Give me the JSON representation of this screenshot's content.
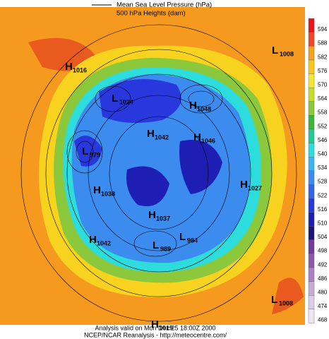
{
  "header": {
    "lines": [
      "Mean Sea Level Pressure (hPa)",
      "500 hPa Heights (dam)"
    ]
  },
  "colorbar": {
    "labels": [
      594,
      588,
      582,
      576,
      570,
      564,
      558,
      552,
      546,
      540,
      534,
      528,
      522,
      516,
      510,
      504,
      498,
      492,
      486,
      480,
      474,
      468
    ]
  },
  "centers": [
    {
      "kind": "H",
      "value": 1016
    },
    {
      "kind": "L",
      "value": 1024
    },
    {
      "kind": "H",
      "value": 1048
    },
    {
      "kind": "H",
      "value": 1042
    },
    {
      "kind": "H",
      "value": 1046
    },
    {
      "kind": "L",
      "value": 1008
    },
    {
      "kind": "L",
      "value": 979
    },
    {
      "kind": "H",
      "value": 1038
    },
    {
      "kind": "H",
      "value": 1037
    },
    {
      "kind": "H",
      "value": 1027
    },
    {
      "kind": "H",
      "value": 1042
    },
    {
      "kind": "L",
      "value": 989
    },
    {
      "kind": "L",
      "value": 984
    },
    {
      "kind": "L",
      "value": 1008
    },
    {
      "kind": "H",
      "value": 1019
    }
  ],
  "footer": {
    "lines": [
      "Analysis valid on Mon Dec 25 18:00Z 2000",
      "NCEP/NCAR Reanalysis - http://meteocentre.com/"
    ]
  }
}
